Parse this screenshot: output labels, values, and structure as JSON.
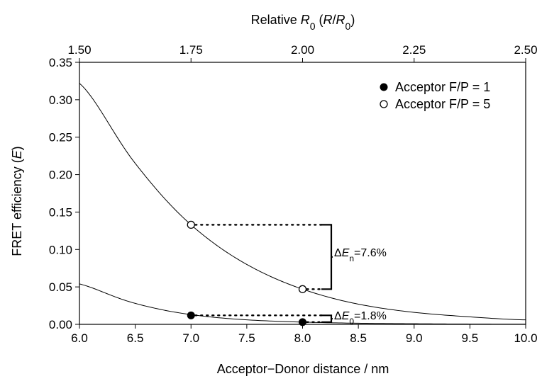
{
  "chart_data": {
    "type": "line",
    "top_axis": {
      "title_prefix": "Relative ",
      "title_R": "R",
      "title_R_sub": "0",
      "title_paren_open": " (",
      "title_ratio_num": "R",
      "title_ratio_slash": "/",
      "title_ratio_den": "R",
      "title_ratio_den_sub": "0",
      "title_paren_close": ")",
      "ticks": [
        "1.50",
        "1.75",
        "2.00",
        "2.25",
        "2.50"
      ],
      "lim": [
        1.5,
        2.5
      ]
    },
    "xlabel": "Acceptor−Donor distance / nm",
    "x_ticks": [
      "6.0",
      "6.5",
      "7.0",
      "7.5",
      "8.0",
      "8.5",
      "9.0",
      "9.5",
      "10.0"
    ],
    "xlim": [
      6.0,
      10.0
    ],
    "ylabel_main": "FRET efficiency (",
    "ylabel_var": "E",
    "ylabel_close": ")",
    "y_ticks": [
      "0.00",
      "0.05",
      "0.10",
      "0.15",
      "0.20",
      "0.25",
      "0.30",
      "0.35"
    ],
    "ylim": [
      0.0,
      0.35
    ],
    "grid": false,
    "legend_position": "top-right",
    "series": [
      {
        "name": "Acceptor F/P = 1",
        "marker": "filled-circle",
        "points": [
          {
            "x": 7.0,
            "y": 0.012
          },
          {
            "x": 8.0,
            "y": 0.003
          }
        ],
        "curve": {
          "x": [
            6.0,
            6.5,
            7.0,
            7.5,
            8.0,
            8.5,
            9.0,
            9.5,
            10.0
          ],
          "y": [
            0.054,
            0.028,
            0.013,
            0.006,
            0.003,
            0.0015,
            0.0008,
            0.0004,
            0.0002
          ]
        }
      },
      {
        "name": "Acceptor F/P = 5",
        "marker": "open-circle",
        "points": [
          {
            "x": 7.0,
            "y": 0.133
          },
          {
            "x": 8.0,
            "y": 0.047
          }
        ],
        "curve": {
          "x": [
            6.0,
            6.5,
            7.0,
            7.5,
            8.0,
            8.5,
            9.0,
            9.5,
            10.0
          ],
          "y": [
            0.322,
            0.215,
            0.133,
            0.08,
            0.047,
            0.027,
            0.016,
            0.01,
            0.006
          ]
        }
      }
    ],
    "annotations": [
      {
        "prefix": "Δ",
        "var": "E",
        "sub": "n",
        "suffix": "=7.6%",
        "y_top": 0.133,
        "y_bottom": 0.047
      },
      {
        "prefix": "Δ",
        "var": "E",
        "sub": "0",
        "suffix": "=1.8%",
        "y_top": 0.012,
        "y_bottom": 0.003
      }
    ]
  }
}
